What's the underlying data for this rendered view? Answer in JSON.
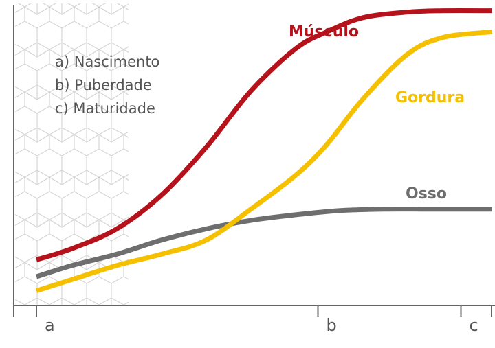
{
  "chart_data": {
    "type": "line",
    "title": "",
    "xlabel": "",
    "ylabel": "",
    "xlim": [
      0,
      10
    ],
    "ylim": [
      0,
      10
    ],
    "grid": false,
    "x_ticks": [
      {
        "x": 0.2,
        "label": "a"
      },
      {
        "x": 6.5,
        "label": "b"
      },
      {
        "x": 9.7,
        "label": "c"
      }
    ],
    "legend": {
      "placement": "top-left",
      "items": [
        "a)  Nascimento",
        "b)  Puberdade",
        "c)  Maturidade"
      ]
    },
    "series": [
      {
        "name": "Músculo",
        "color": "#b5121b",
        "x": [
          0.2,
          1.0,
          2.0,
          3.0,
          4.0,
          5.0,
          6.0,
          6.7,
          7.5,
          8.5,
          9.3,
          10.4
        ],
        "y": [
          1.5,
          1.9,
          2.6,
          3.8,
          5.5,
          7.5,
          9.0,
          9.6,
          10.1,
          10.3,
          10.35,
          10.35
        ]
      },
      {
        "name": "Gordura",
        "color": "#f5c000",
        "x": [
          0.2,
          1.0,
          2.0,
          3.0,
          4.0,
          5.0,
          6.0,
          6.7,
          7.5,
          8.5,
          9.3,
          10.4
        ],
        "y": [
          0.4,
          0.8,
          1.3,
          1.7,
          2.2,
          3.3,
          4.5,
          5.6,
          7.2,
          8.8,
          9.4,
          9.6
        ]
      },
      {
        "name": "Osso",
        "color": "#6e6e6e",
        "x": [
          0.2,
          1.0,
          2.0,
          3.0,
          4.0,
          5.0,
          6.0,
          7.0,
          8.0,
          9.0,
          10.4
        ],
        "y": [
          0.9,
          1.3,
          1.7,
          2.2,
          2.6,
          2.9,
          3.1,
          3.25,
          3.3,
          3.3,
          3.3
        ]
      }
    ],
    "series_label_positions_note": ""
  }
}
